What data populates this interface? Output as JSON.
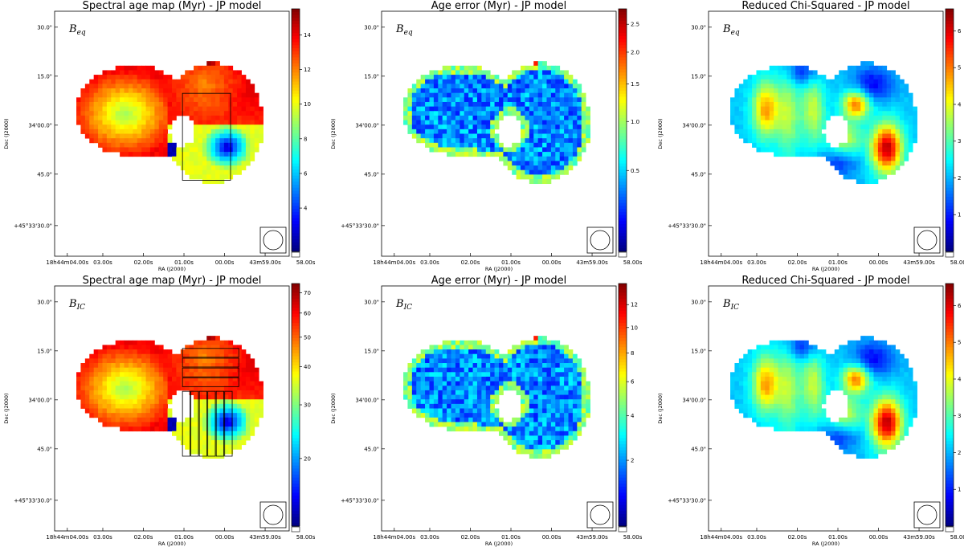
{
  "figure": {
    "panels": [
      {
        "title": "Spectral age map (Myr) - JP model",
        "field": "B",
        "field_sub": "eq",
        "map": "age",
        "regions": "single",
        "colorbar": {
          "min": 1.5,
          "max": 15.5,
          "ticks": [
            4,
            6,
            8,
            10,
            12,
            14
          ],
          "scale": "linear"
        }
      },
      {
        "title": "Age error (Myr) - JP model",
        "field": "B",
        "field_sub": "eq",
        "map": "error",
        "regions": "none",
        "colorbar": {
          "min": 0.05,
          "max": 2.8,
          "ticks": [
            0.5,
            1.0,
            1.5,
            2.0,
            2.5
          ],
          "scale": "sqrt",
          "tick_format": "1"
        }
      },
      {
        "title": "Reduced Chi-Squared - JP model",
        "field": "B",
        "field_sub": "eq",
        "map": "chi",
        "regions": "none",
        "colorbar": {
          "min": 0,
          "max": 6.6,
          "ticks": [
            1,
            2,
            3,
            4,
            5,
            6
          ],
          "scale": "linear"
        }
      },
      {
        "title": "Spectral age map (Myr) - JP model",
        "field": "B",
        "field_sub": "IC",
        "map": "age",
        "regions": "multi",
        "colorbar": {
          "min": 12,
          "max": 75,
          "ticks": [
            20,
            30,
            40,
            50,
            60,
            70
          ],
          "scale": "log"
        }
      },
      {
        "title": "Age error (Myr) - JP model",
        "field": "B",
        "field_sub": "IC",
        "map": "error",
        "regions": "none",
        "colorbar": {
          "min": 0.3,
          "max": 14,
          "ticks": [
            2,
            4,
            6,
            8,
            10,
            12
          ],
          "scale": "sqrt"
        }
      },
      {
        "title": "Reduced Chi-Squared - JP model",
        "field": "B",
        "field_sub": "IC",
        "map": "chi",
        "regions": "none",
        "colorbar": {
          "min": 0,
          "max": 6.6,
          "ticks": [
            1,
            2,
            3,
            4,
            5,
            6
          ],
          "scale": "linear"
        }
      }
    ],
    "dec_ticks": [
      "30.0\"",
      "15.0\"",
      "34'00.0\"",
      "45.0\"",
      "+45°33'30.0\""
    ],
    "ra_ticks": [
      "18h44m04.00s",
      "03.00s",
      "02.00s",
      "01.00s",
      "00.00s",
      "43m59.00s",
      "58.00s"
    ],
    "xlabel": "RA (J2000)",
    "ylabel": "Dec (J2000)"
  },
  "chart_data": {
    "type": "heatmap",
    "grid": "6 panels, 2 rows x 3 columns",
    "x_axis": {
      "label": "RA (J2000)",
      "ticks": [
        "18h44m04.00s",
        "03.00s",
        "02.00s",
        "01.00s",
        "00.00s",
        "43m59.00s",
        "58.00s"
      ]
    },
    "y_axis": {
      "label": "Dec (J2000)",
      "ticks": [
        "30.0\"",
        "15.0\"",
        "34'00.0\"",
        "45.0\"",
        "+45°33'30.0\""
      ]
    },
    "colormap": "jet",
    "panels": [
      {
        "title": "Spectral age map (Myr) - JP model",
        "field": "Beq",
        "colorbar_range": [
          1.5,
          15.5
        ],
        "colorbar_ticks": [
          4,
          6,
          8,
          10,
          12,
          14
        ]
      },
      {
        "title": "Age error (Myr) - JP model",
        "field": "Beq",
        "colorbar_range": [
          0.05,
          2.8
        ],
        "colorbar_ticks": [
          0.5,
          1.0,
          1.5,
          2.0,
          2.5
        ]
      },
      {
        "title": "Reduced Chi-Squared - JP model",
        "field": "Beq",
        "colorbar_range": [
          0,
          6.6
        ],
        "colorbar_ticks": [
          1,
          2,
          3,
          4,
          5,
          6
        ]
      },
      {
        "title": "Spectral age map (Myr) - JP model",
        "field": "BIC",
        "colorbar_range": [
          12,
          75
        ],
        "colorbar_ticks": [
          20,
          30,
          40,
          50,
          60,
          70
        ]
      },
      {
        "title": "Age error (Myr) - JP model",
        "field": "BIC",
        "colorbar_range": [
          0.3,
          14
        ],
        "colorbar_ticks": [
          2,
          4,
          6,
          8,
          10,
          12
        ]
      },
      {
        "title": "Reduced Chi-Squared - JP model",
        "field": "BIC",
        "colorbar_range": [
          0,
          6.6
        ],
        "colorbar_ticks": [
          1,
          2,
          3,
          4,
          5,
          6
        ]
      }
    ]
  }
}
